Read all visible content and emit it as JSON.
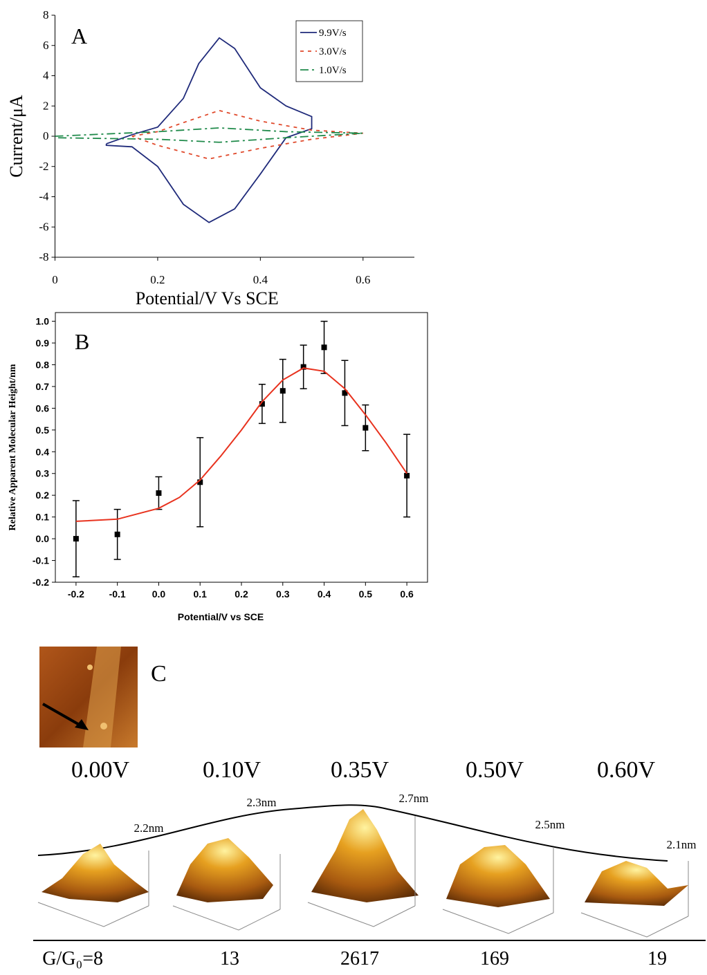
{
  "chart_data": [
    {
      "type": "line",
      "panel": "A",
      "x_label": "Potential/V Vs SCE",
      "y_label": "Current/μA",
      "xlim": [
        0,
        0.7
      ],
      "xticks": [
        0,
        0.2,
        0.4,
        0.6
      ],
      "ylim": [
        -8,
        8
      ],
      "yticks": [
        -8,
        -6,
        -4,
        -2,
        0,
        2,
        4,
        6,
        8
      ],
      "legend": "top-right",
      "series": [
        {
          "name": "9.9V/s",
          "color": "#1f2a7a",
          "dash": "solid",
          "x": [
            0.1,
            0.15,
            0.2,
            0.25,
            0.28,
            0.32,
            0.35,
            0.4,
            0.45,
            0.5,
            0.5,
            0.45,
            0.4,
            0.35,
            0.3,
            0.25,
            0.2,
            0.15,
            0.1,
            0.1
          ],
          "values": [
            -0.5,
            0.1,
            0.6,
            2.5,
            4.8,
            6.5,
            5.8,
            3.2,
            2.0,
            1.3,
            0.5,
            -0.1,
            -2.5,
            -4.8,
            -5.7,
            -4.5,
            -2.0,
            -0.7,
            -0.6,
            -0.5
          ]
        },
        {
          "name": "3.0V/s",
          "color": "#e0482a",
          "dash": "dash",
          "x": [
            0.15,
            0.2,
            0.25,
            0.32,
            0.4,
            0.5,
            0.6,
            0.5,
            0.4,
            0.3,
            0.2,
            0.15
          ],
          "values": [
            0.0,
            0.3,
            0.9,
            1.7,
            1.0,
            0.4,
            0.2,
            -0.2,
            -0.8,
            -1.5,
            -0.6,
            0.0
          ]
        },
        {
          "name": "1.0V/s",
          "color": "#1f8a4a",
          "dash": "dashdot",
          "x": [
            0,
            0.2,
            0.32,
            0.45,
            0.6,
            0.45,
            0.32,
            0.2,
            0
          ],
          "values": [
            0.0,
            0.3,
            0.55,
            0.3,
            0.2,
            -0.1,
            -0.4,
            -0.2,
            -0.1
          ]
        }
      ]
    },
    {
      "type": "scatter",
      "panel": "B",
      "x_label": "Potential/V vs SCE",
      "y_label": "Relative Apparent Molecular Height/nm",
      "xlim": [
        -0.25,
        0.65
      ],
      "xticks": [
        -0.2,
        -0.1,
        {
          "value": 0,
          "label": "0.0"
        },
        0.1,
        0.2,
        0.3,
        0.4,
        0.5,
        0.6
      ],
      "ylim": [
        -0.2,
        1.04
      ],
      "yticks": [
        -0.2,
        -0.1,
        {
          "value": 0,
          "label": "0.0"
        },
        0.1,
        0.2,
        0.3,
        0.4,
        0.5,
        0.6,
        0.7,
        0.8,
        0.9,
        {
          "value": 1,
          "label": "1.0"
        }
      ],
      "series": [
        {
          "kind": "points",
          "color": "#000000",
          "x": [
            -0.2,
            -0.1,
            0,
            0.1,
            0.25,
            0.3,
            0.35,
            0.4,
            0.45,
            0.5,
            0.6
          ],
          "values": [
            0.0,
            0.02,
            0.21,
            0.26,
            0.62,
            0.68,
            0.79,
            0.88,
            0.67,
            0.51,
            0.29
          ],
          "errors": [
            0.175,
            0.115,
            0.075,
            0.205,
            0.09,
            0.145,
            0.1,
            0.12,
            0.15,
            0.105,
            0.19
          ]
        },
        {
          "kind": "line",
          "color": "#e8321e",
          "x": [
            -0.2,
            -0.1,
            0,
            0.05,
            0.1,
            0.15,
            0.2,
            0.25,
            0.3,
            0.35,
            0.4,
            0.45,
            0.5,
            0.55,
            0.6
          ],
          "values": [
            0.08,
            0.09,
            0.14,
            0.19,
            0.27,
            0.38,
            0.5,
            0.63,
            0.73,
            0.785,
            0.77,
            0.69,
            0.57,
            0.44,
            0.3
          ]
        }
      ]
    }
  ],
  "panel_c": {
    "letter": "C",
    "potentials": [
      "0.00V",
      "0.10V",
      "0.35V",
      "0.50V",
      "0.60V"
    ],
    "heights": [
      "2.2nm",
      "2.3nm",
      "2.7nm",
      "2.5nm",
      "2.1nm"
    ],
    "conductance_label": "G/G₀=",
    "conductance": [
      8,
      13,
      2617,
      169,
      19
    ]
  }
}
